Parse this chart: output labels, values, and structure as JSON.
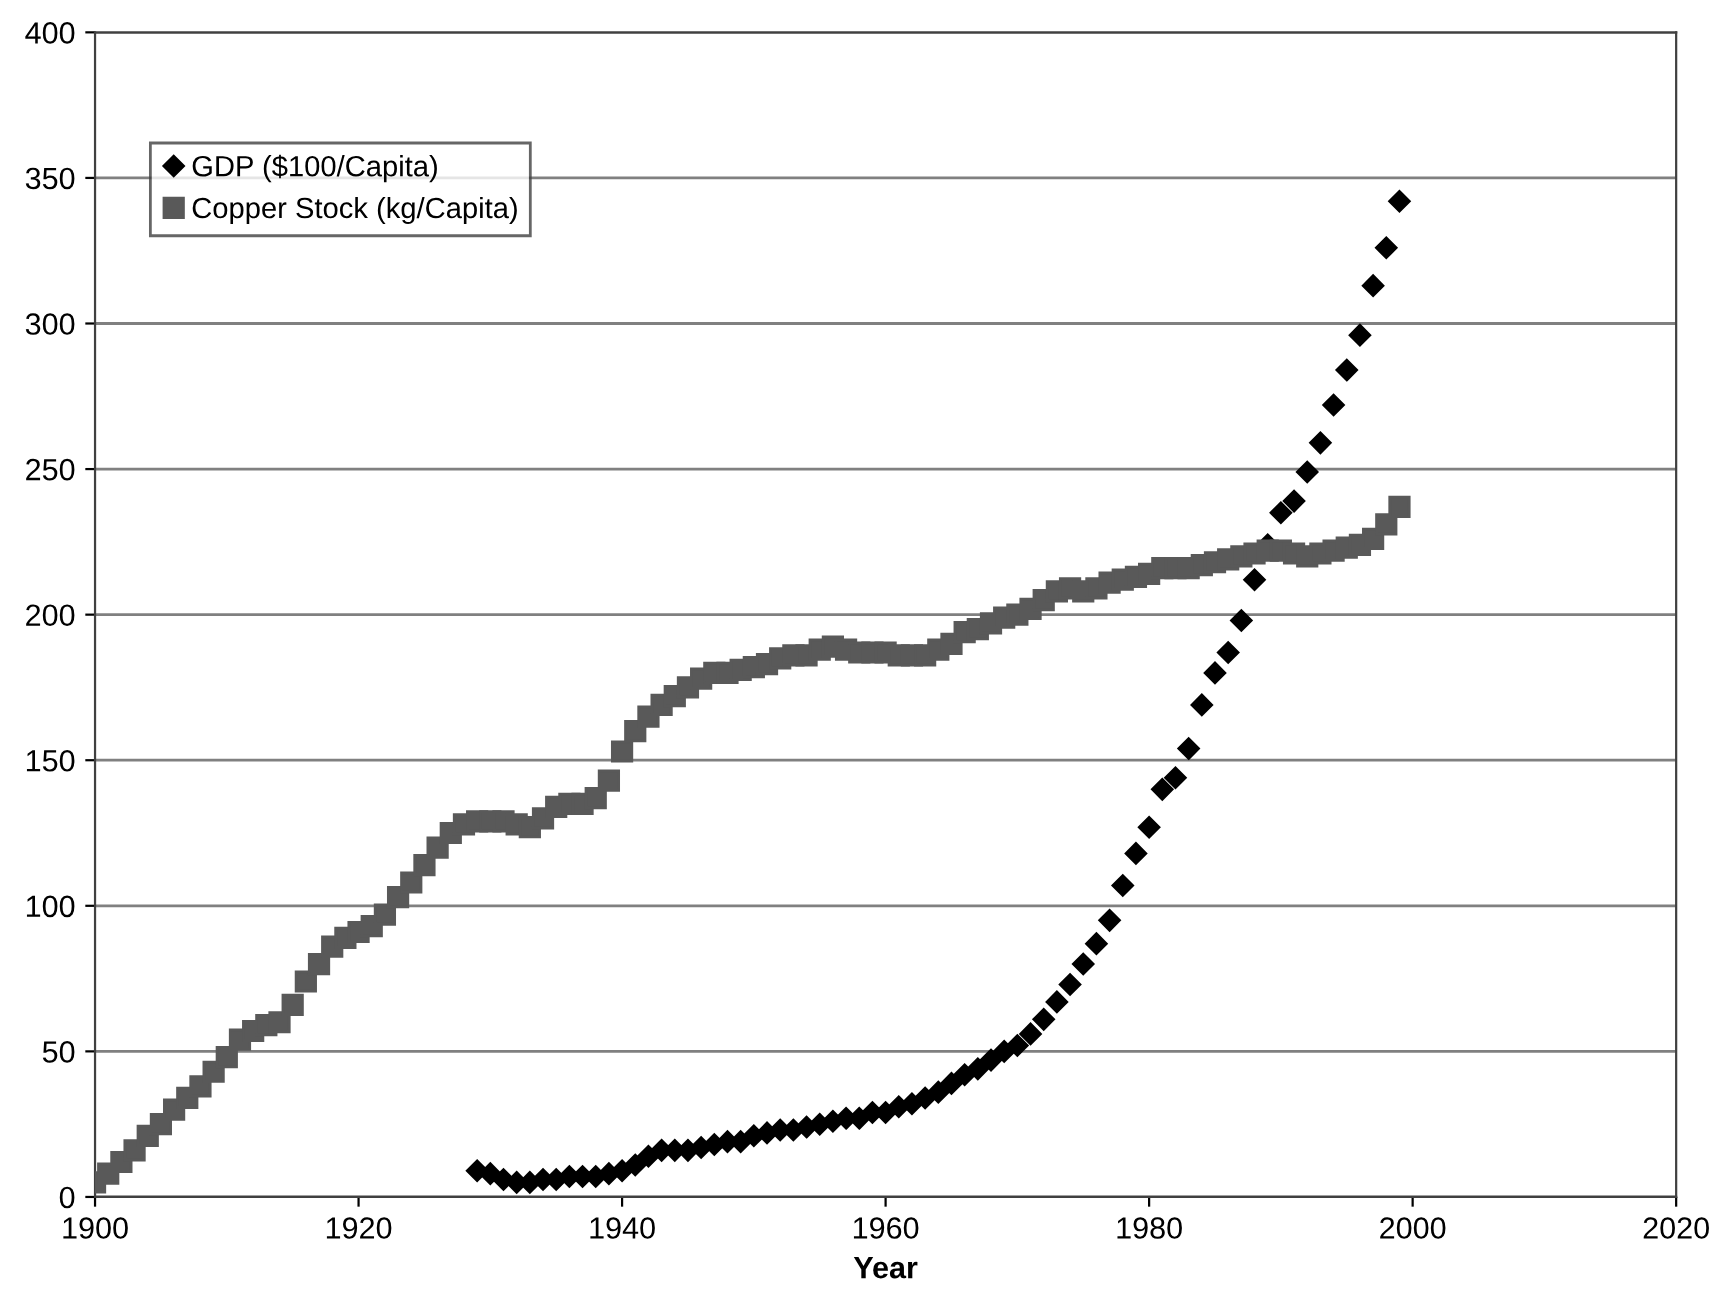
{
  "chart_data": {
    "type": "scatter",
    "xlabel": "Year",
    "xlim": [
      1900,
      2020
    ],
    "xticks": [
      1900,
      1920,
      1940,
      1960,
      1980,
      2000,
      2020
    ],
    "ylim": [
      0,
      400
    ],
    "yticks": [
      0,
      50,
      100,
      150,
      200,
      250,
      300,
      350,
      400
    ],
    "grid": "y",
    "legend": "top left",
    "series": [
      {
        "name": "GDP ($100/Capita)",
        "color": "#000000",
        "marker": "diamond",
        "x": [
          1929,
          1930,
          1931,
          1932,
          1933,
          1934,
          1935,
          1936,
          1937,
          1938,
          1939,
          1940,
          1941,
          1942,
          1943,
          1944,
          1945,
          1946,
          1947,
          1948,
          1949,
          1950,
          1951,
          1952,
          1953,
          1954,
          1955,
          1956,
          1957,
          1958,
          1959,
          1960,
          1961,
          1962,
          1963,
          1964,
          1965,
          1966,
          1967,
          1968,
          1969,
          1970,
          1971,
          1972,
          1973,
          1974,
          1975,
          1976,
          1977,
          1978,
          1979,
          1980,
          1981,
          1982,
          1983,
          1984,
          1985,
          1986,
          1987,
          1988,
          1989,
          1990,
          1991,
          1992,
          1993,
          1994,
          1995,
          1996,
          1997,
          1998,
          1999
        ],
        "values": [
          9,
          8,
          6,
          5,
          5,
          6,
          6,
          7,
          7,
          7,
          8,
          9,
          11,
          14,
          16,
          16,
          16,
          17,
          18,
          19,
          19,
          21,
          22,
          23,
          23,
          24,
          25,
          26,
          27,
          27,
          29,
          29,
          31,
          32,
          34,
          36,
          39,
          42,
          44,
          47,
          50,
          52,
          56,
          61,
          67,
          73,
          80,
          87,
          95,
          107,
          118,
          127,
          140,
          144,
          154,
          169,
          180,
          187,
          198,
          212,
          224,
          235,
          239,
          249,
          259,
          272,
          284,
          296,
          313,
          326,
          342
        ]
      },
      {
        "name": "Copper Stock (kg/Capita)",
        "color": "#595959",
        "marker": "square",
        "x": [
          1900,
          1901,
          1902,
          1903,
          1904,
          1905,
          1906,
          1907,
          1908,
          1909,
          1910,
          1911,
          1912,
          1913,
          1914,
          1915,
          1916,
          1917,
          1918,
          1919,
          1920,
          1921,
          1922,
          1923,
          1924,
          1925,
          1926,
          1927,
          1928,
          1929,
          1930,
          1931,
          1932,
          1933,
          1934,
          1935,
          1936,
          1937,
          1938,
          1939,
          1940,
          1941,
          1942,
          1943,
          1944,
          1945,
          1946,
          1947,
          1948,
          1949,
          1950,
          1951,
          1952,
          1953,
          1954,
          1955,
          1956,
          1957,
          1958,
          1959,
          1960,
          1961,
          1962,
          1963,
          1964,
          1965,
          1966,
          1967,
          1968,
          1969,
          1970,
          1971,
          1972,
          1973,
          1974,
          1975,
          1976,
          1977,
          1978,
          1979,
          1980,
          1981,
          1982,
          1983,
          1984,
          1985,
          1986,
          1987,
          1988,
          1989,
          1990,
          1991,
          1992,
          1993,
          1994,
          1995,
          1996,
          1997,
          1998,
          1999
        ],
        "values": [
          5,
          8,
          12,
          16,
          21,
          25,
          30,
          34,
          38,
          43,
          48,
          54,
          57,
          59,
          60,
          66,
          74,
          80,
          86,
          89,
          91,
          93,
          97,
          103,
          108,
          114,
          120,
          125,
          128,
          129,
          129,
          129,
          128,
          127,
          130,
          134,
          135,
          135,
          137,
          143,
          153,
          160,
          165,
          169,
          172,
          175,
          178,
          180,
          180,
          181,
          182,
          183,
          185,
          186,
          186,
          188,
          189,
          188,
          187,
          187,
          187,
          186,
          186,
          186,
          188,
          190,
          194,
          195,
          197,
          199,
          200,
          202,
          205,
          208,
          209,
          208,
          209,
          211,
          212,
          213,
          214,
          216,
          216,
          216,
          217,
          218,
          219,
          220,
          221,
          222,
          222,
          221,
          220,
          221,
          222,
          223,
          224,
          226,
          231,
          237
        ]
      }
    ]
  }
}
